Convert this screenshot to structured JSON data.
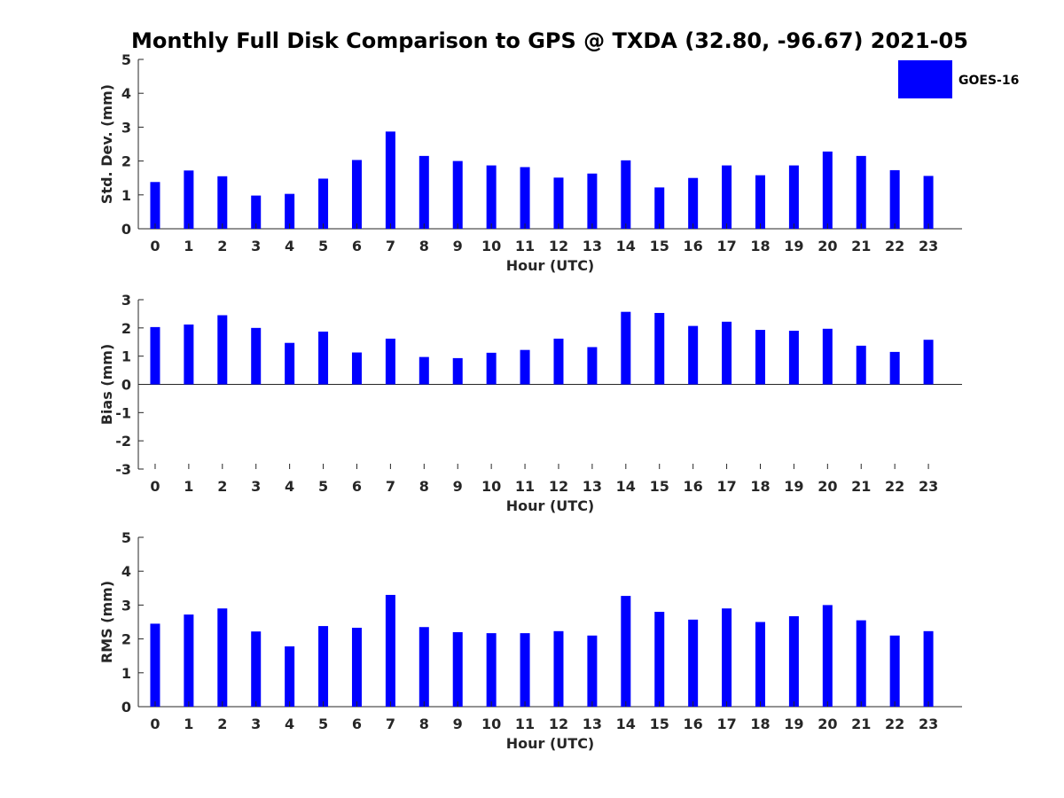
{
  "chart_data": {
    "type": "bar",
    "title": "Monthly Full Disk Comparison to GPS @ TXDA (32.80, -96.67) 2021-05",
    "legend": {
      "placement": "top-right",
      "entries": [
        {
          "name": "GOES-16",
          "color": "#0000ff"
        }
      ]
    },
    "series_color": "#0000ff",
    "categories": [
      "0",
      "1",
      "2",
      "3",
      "4",
      "5",
      "6",
      "7",
      "8",
      "9",
      "10",
      "11",
      "12",
      "13",
      "14",
      "15",
      "16",
      "17",
      "18",
      "19",
      "20",
      "21",
      "22",
      "23"
    ],
    "panels": [
      {
        "id": "std",
        "ylabel": "Std. Dev. (mm)",
        "xlabel": "Hour (UTC)",
        "ylim": [
          0,
          5
        ],
        "yticks": [
          0,
          1,
          2,
          3,
          4,
          5
        ],
        "values": [
          1.38,
          1.72,
          1.55,
          0.98,
          1.03,
          1.48,
          2.03,
          2.87,
          2.15,
          2.0,
          1.87,
          1.82,
          1.51,
          1.63,
          2.02,
          1.22,
          1.5,
          1.87,
          1.58,
          1.87,
          2.28,
          2.15,
          1.73,
          1.56
        ]
      },
      {
        "id": "bias",
        "ylabel": "Bias (mm)",
        "xlabel": "Hour (UTC)",
        "ylim": [
          -3,
          3
        ],
        "yticks": [
          -3,
          -2,
          -1,
          0,
          1,
          2,
          3
        ],
        "values": [
          2.03,
          2.12,
          2.45,
          2.0,
          1.47,
          1.87,
          1.13,
          1.62,
          0.97,
          0.93,
          1.12,
          1.22,
          1.62,
          1.32,
          2.57,
          2.53,
          2.07,
          2.22,
          1.93,
          1.9,
          1.97,
          1.37,
          1.15,
          1.58
        ]
      },
      {
        "id": "rms",
        "ylabel": "RMS (mm)",
        "xlabel": "Hour (UTC)",
        "ylim": [
          0,
          5
        ],
        "yticks": [
          0,
          1,
          2,
          3,
          4,
          5
        ],
        "values": [
          2.45,
          2.72,
          2.9,
          2.22,
          1.78,
          2.38,
          2.33,
          3.3,
          2.35,
          2.2,
          2.17,
          2.17,
          2.23,
          2.1,
          3.27,
          2.8,
          2.57,
          2.9,
          2.5,
          2.67,
          3.0,
          2.55,
          2.1,
          2.23
        ]
      }
    ]
  }
}
